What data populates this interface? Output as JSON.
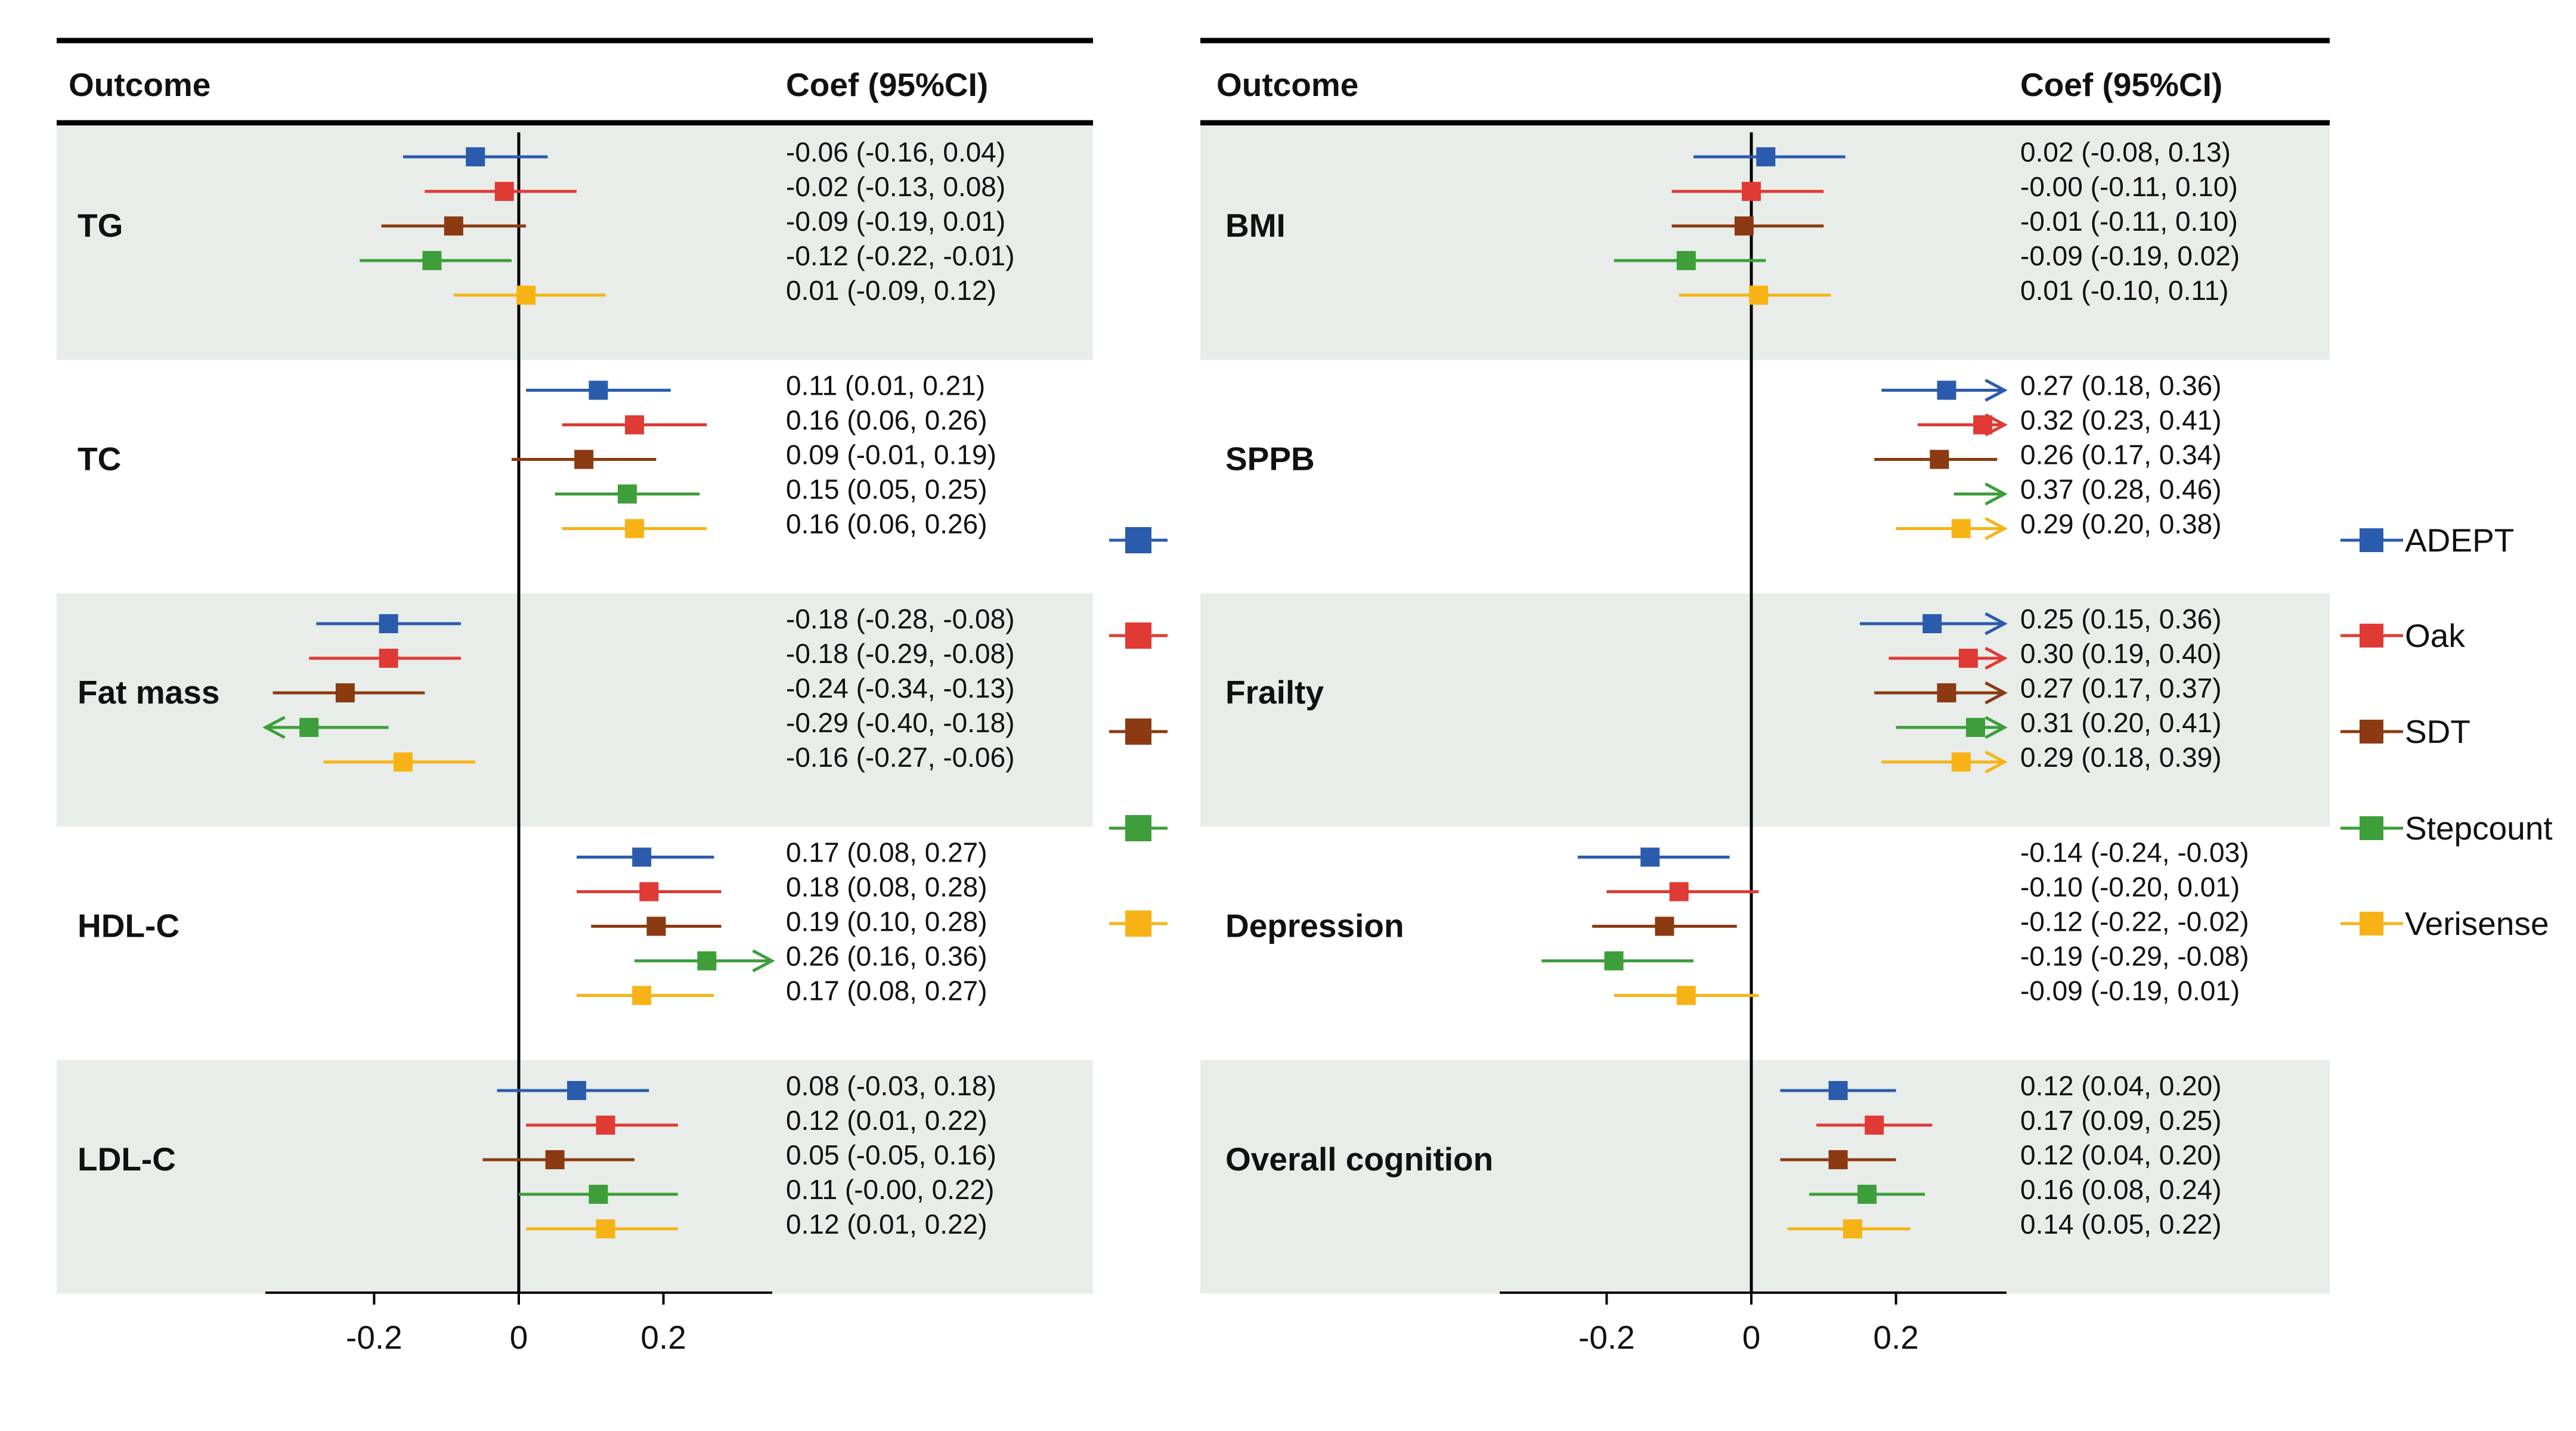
{
  "chart_data": {
    "type": "forest",
    "legend_position": "right",
    "grid": false,
    "colors": {
      "ADEPT": "#2B5BAD",
      "Oak": "#E03A35",
      "SDT": "#8B3A12",
      "Stepcount": "#3D9E3A",
      "Verisense": "#F7B316"
    },
    "series": [
      "ADEPT",
      "Oak",
      "SDT",
      "Stepcount",
      "Verisense"
    ],
    "panels": [
      {
        "header_outcome": "Outcome",
        "header_coef": "Coef (95%CI)",
        "xlim": [
          -0.35,
          0.35
        ],
        "ticks": [
          -0.2,
          0,
          0.2
        ],
        "tick_labels": [
          "-0.2",
          "0",
          "0.2"
        ],
        "groups": [
          {
            "name": "TG",
            "rows": [
              {
                "series": "ADEPT",
                "coef": -0.06,
                "lo": -0.16,
                "hi": 0.04,
                "label": "-0.06 (-0.16, 0.04)"
              },
              {
                "series": "Oak",
                "coef": -0.02,
                "lo": -0.13,
                "hi": 0.08,
                "label": "-0.02 (-0.13, 0.08)"
              },
              {
                "series": "SDT",
                "coef": -0.09,
                "lo": -0.19,
                "hi": 0.01,
                "label": "-0.09 (-0.19, 0.01)"
              },
              {
                "series": "Stepcount",
                "coef": -0.12,
                "lo": -0.22,
                "hi": -0.01,
                "label": "-0.12 (-0.22, -0.01)"
              },
              {
                "series": "Verisense",
                "coef": 0.01,
                "lo": -0.09,
                "hi": 0.12,
                "label": "0.01 (-0.09, 0.12)"
              }
            ]
          },
          {
            "name": "TC",
            "rows": [
              {
                "series": "ADEPT",
                "coef": 0.11,
                "lo": 0.01,
                "hi": 0.21,
                "label": "0.11 (0.01, 0.21)"
              },
              {
                "series": "Oak",
                "coef": 0.16,
                "lo": 0.06,
                "hi": 0.26,
                "label": "0.16 (0.06, 0.26)"
              },
              {
                "series": "SDT",
                "coef": 0.09,
                "lo": -0.01,
                "hi": 0.19,
                "label": "0.09 (-0.01, 0.19)"
              },
              {
                "series": "Stepcount",
                "coef": 0.15,
                "lo": 0.05,
                "hi": 0.25,
                "label": "0.15 (0.05, 0.25)"
              },
              {
                "series": "Verisense",
                "coef": 0.16,
                "lo": 0.06,
                "hi": 0.26,
                "label": "0.16 (0.06, 0.26)"
              }
            ]
          },
          {
            "name": "Fat mass",
            "rows": [
              {
                "series": "ADEPT",
                "coef": -0.18,
                "lo": -0.28,
                "hi": -0.08,
                "label": "-0.18 (-0.28, -0.08)"
              },
              {
                "series": "Oak",
                "coef": -0.18,
                "lo": -0.29,
                "hi": -0.08,
                "label": "-0.18 (-0.29, -0.08)"
              },
              {
                "series": "SDT",
                "coef": -0.24,
                "lo": -0.34,
                "hi": -0.13,
                "label": "-0.24 (-0.34, -0.13)"
              },
              {
                "series": "Stepcount",
                "coef": -0.29,
                "lo": -0.4,
                "hi": -0.18,
                "label": "-0.29 (-0.40, -0.18)"
              },
              {
                "series": "Verisense",
                "coef": -0.16,
                "lo": -0.27,
                "hi": -0.06,
                "label": "-0.16 (-0.27, -0.06)"
              }
            ]
          },
          {
            "name": "HDL-C",
            "rows": [
              {
                "series": "ADEPT",
                "coef": 0.17,
                "lo": 0.08,
                "hi": 0.27,
                "label": "0.17 (0.08, 0.27)"
              },
              {
                "series": "Oak",
                "coef": 0.18,
                "lo": 0.08,
                "hi": 0.28,
                "label": "0.18 (0.08, 0.28)"
              },
              {
                "series": "SDT",
                "coef": 0.19,
                "lo": 0.1,
                "hi": 0.28,
                "label": "0.19 (0.10, 0.28)"
              },
              {
                "series": "Stepcount",
                "coef": 0.26,
                "lo": 0.16,
                "hi": 0.36,
                "label": "0.26 (0.16, 0.36)"
              },
              {
                "series": "Verisense",
                "coef": 0.17,
                "lo": 0.08,
                "hi": 0.27,
                "label": "0.17 (0.08, 0.27)"
              }
            ]
          },
          {
            "name": "LDL-C",
            "rows": [
              {
                "series": "ADEPT",
                "coef": 0.08,
                "lo": -0.03,
                "hi": 0.18,
                "label": "0.08 (-0.03, 0.18)"
              },
              {
                "series": "Oak",
                "coef": 0.12,
                "lo": 0.01,
                "hi": 0.22,
                "label": "0.12 (0.01, 0.22)"
              },
              {
                "series": "SDT",
                "coef": 0.05,
                "lo": -0.05,
                "hi": 0.16,
                "label": "0.05 (-0.05, 0.16)"
              },
              {
                "series": "Stepcount",
                "coef": 0.11,
                "lo": -0.0,
                "hi": 0.22,
                "label": "0.11 (-0.00, 0.22)"
              },
              {
                "series": "Verisense",
                "coef": 0.12,
                "lo": 0.01,
                "hi": 0.22,
                "label": "0.12 (0.01, 0.22)"
              }
            ]
          }
        ]
      },
      {
        "header_outcome": "Outcome",
        "header_coef": "Coef (95%CI)",
        "xlim": [
          -0.35,
          0.35
        ],
        "ticks": [
          -0.2,
          0,
          0.2
        ],
        "tick_labels": [
          "-0.2",
          "0",
          "0.2"
        ],
        "groups": [
          {
            "name": "BMI",
            "rows": [
              {
                "series": "ADEPT",
                "coef": 0.02,
                "lo": -0.08,
                "hi": 0.13,
                "label": "0.02 (-0.08, 0.13)"
              },
              {
                "series": "Oak",
                "coef": -0.0,
                "lo": -0.11,
                "hi": 0.1,
                "label": "-0.00 (-0.11, 0.10)"
              },
              {
                "series": "SDT",
                "coef": -0.01,
                "lo": -0.11,
                "hi": 0.1,
                "label": "-0.01 (-0.11, 0.10)"
              },
              {
                "series": "Stepcount",
                "coef": -0.09,
                "lo": -0.19,
                "hi": 0.02,
                "label": "-0.09 (-0.19, 0.02)"
              },
              {
                "series": "Verisense",
                "coef": 0.01,
                "lo": -0.1,
                "hi": 0.11,
                "label": "0.01 (-0.10, 0.11)"
              }
            ]
          },
          {
            "name": "SPPB",
            "rows": [
              {
                "series": "ADEPT",
                "coef": 0.27,
                "lo": 0.18,
                "hi": 0.36,
                "label": "0.27 (0.18, 0.36)"
              },
              {
                "series": "Oak",
                "coef": 0.32,
                "lo": 0.23,
                "hi": 0.41,
                "label": "0.32 (0.23, 0.41)"
              },
              {
                "series": "SDT",
                "coef": 0.26,
                "lo": 0.17,
                "hi": 0.34,
                "label": "0.26 (0.17, 0.34)"
              },
              {
                "series": "Stepcount",
                "coef": 0.37,
                "lo": 0.28,
                "hi": 0.46,
                "label": "0.37 (0.28, 0.46)"
              },
              {
                "series": "Verisense",
                "coef": 0.29,
                "lo": 0.2,
                "hi": 0.38,
                "label": "0.29 (0.20, 0.38)"
              }
            ]
          },
          {
            "name": "Frailty",
            "rows": [
              {
                "series": "ADEPT",
                "coef": 0.25,
                "lo": 0.15,
                "hi": 0.36,
                "label": "0.25 (0.15, 0.36)"
              },
              {
                "series": "Oak",
                "coef": 0.3,
                "lo": 0.19,
                "hi": 0.4,
                "label": "0.30 (0.19, 0.40)"
              },
              {
                "series": "SDT",
                "coef": 0.27,
                "lo": 0.17,
                "hi": 0.37,
                "label": "0.27 (0.17, 0.37)"
              },
              {
                "series": "Stepcount",
                "coef": 0.31,
                "lo": 0.2,
                "hi": 0.41,
                "label": "0.31 (0.20, 0.41)"
              },
              {
                "series": "Verisense",
                "coef": 0.29,
                "lo": 0.18,
                "hi": 0.39,
                "label": "0.29 (0.18, 0.39)"
              }
            ]
          },
          {
            "name": "Depression",
            "rows": [
              {
                "series": "ADEPT",
                "coef": -0.14,
                "lo": -0.24,
                "hi": -0.03,
                "label": "-0.14 (-0.24, -0.03)"
              },
              {
                "series": "Oak",
                "coef": -0.1,
                "lo": -0.2,
                "hi": 0.01,
                "label": "-0.10 (-0.20, 0.01)"
              },
              {
                "series": "SDT",
                "coef": -0.12,
                "lo": -0.22,
                "hi": -0.02,
                "label": "-0.12 (-0.22, -0.02)"
              },
              {
                "series": "Stepcount",
                "coef": -0.19,
                "lo": -0.29,
                "hi": -0.08,
                "label": "-0.19 (-0.29, -0.08)"
              },
              {
                "series": "Verisense",
                "coef": -0.09,
                "lo": -0.19,
                "hi": 0.01,
                "label": "-0.09 (-0.19, 0.01)"
              }
            ]
          },
          {
            "name": "Overall cognition",
            "rows": [
              {
                "series": "ADEPT",
                "coef": 0.12,
                "lo": 0.04,
                "hi": 0.2,
                "label": "0.12 (0.04, 0.20)"
              },
              {
                "series": "Oak",
                "coef": 0.17,
                "lo": 0.09,
                "hi": 0.25,
                "label": "0.17 (0.09, 0.25)"
              },
              {
                "series": "SDT",
                "coef": 0.12,
                "lo": 0.04,
                "hi": 0.2,
                "label": "0.12 (0.04, 0.20)"
              },
              {
                "series": "Stepcount",
                "coef": 0.16,
                "lo": 0.08,
                "hi": 0.24,
                "label": "0.16 (0.08, 0.24)"
              },
              {
                "series": "Verisense",
                "coef": 0.14,
                "lo": 0.05,
                "hi": 0.22,
                "label": "0.14 (0.05, 0.22)"
              }
            ]
          }
        ]
      }
    ]
  }
}
